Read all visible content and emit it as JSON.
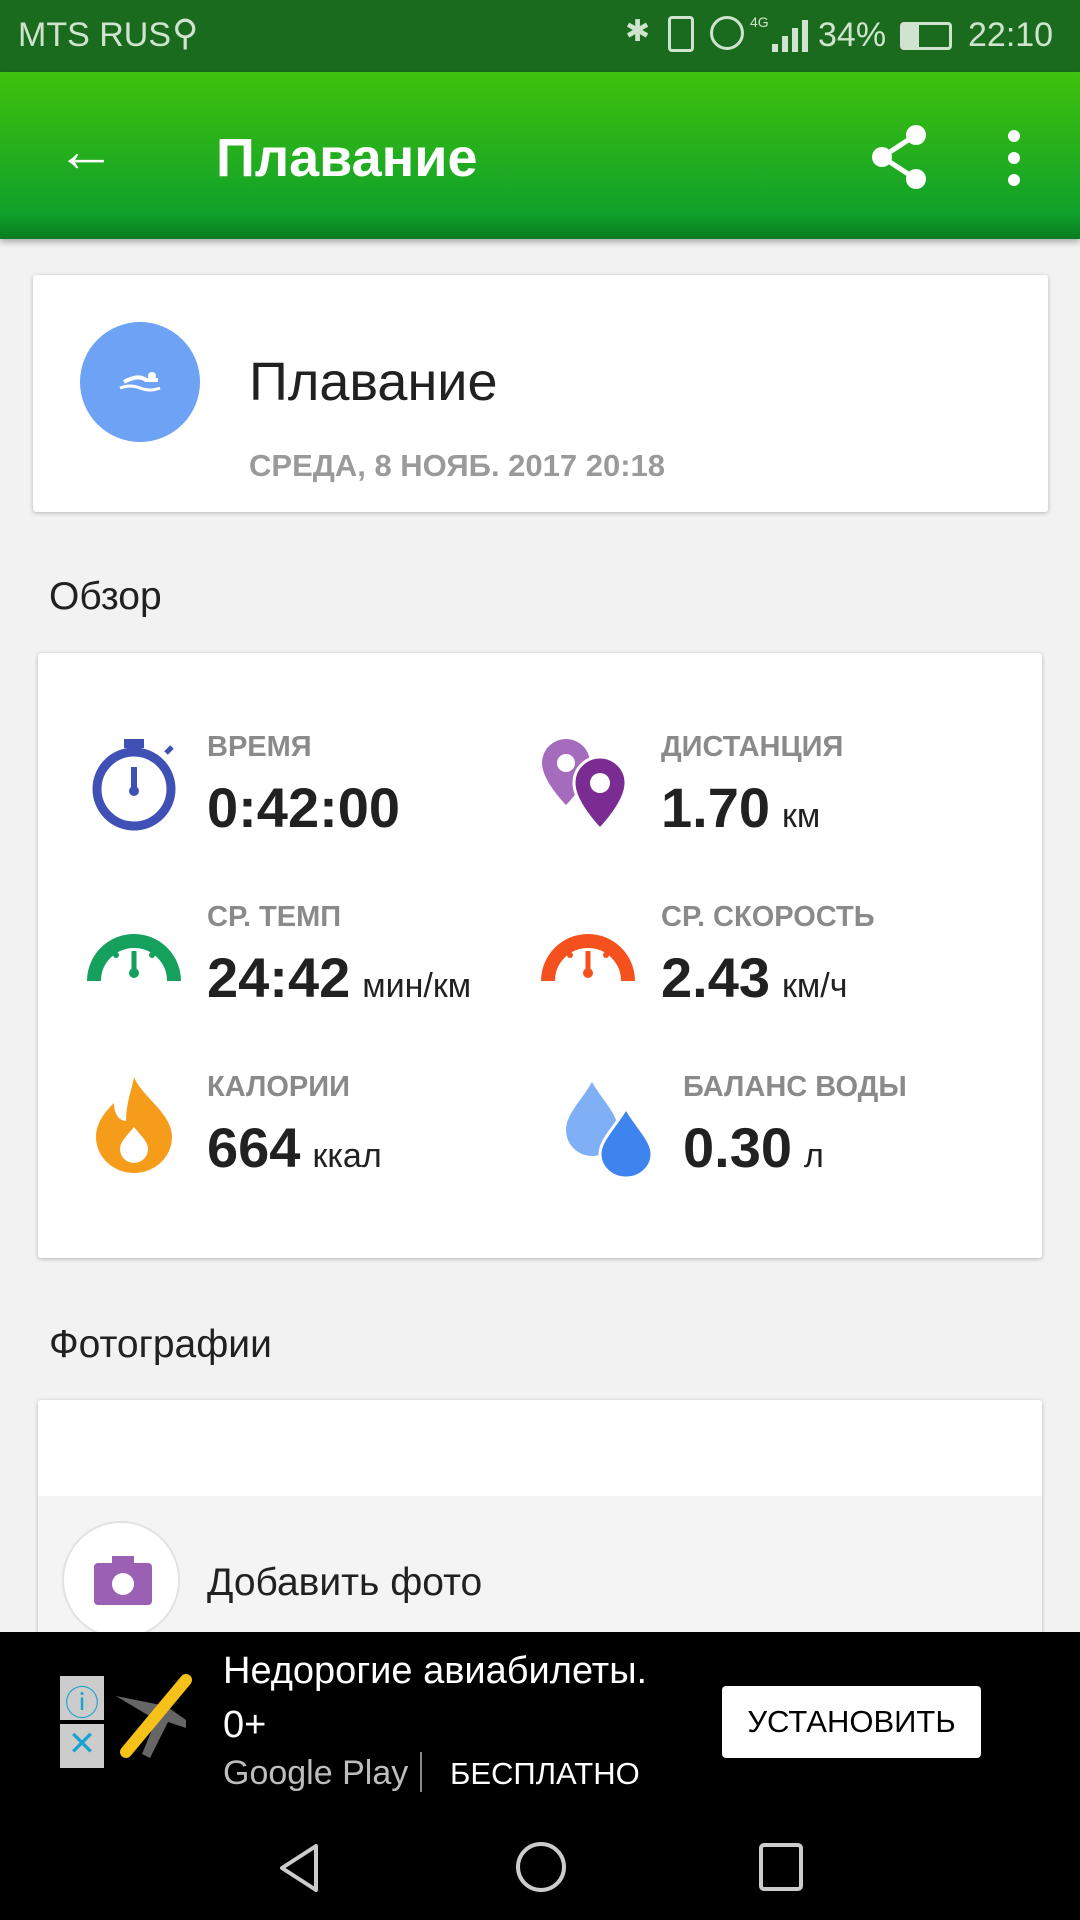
{
  "status_bar": {
    "carrier": "MTS RUS",
    "battery": "34%",
    "time": "22:10",
    "network": "4G"
  },
  "app_bar": {
    "title": "Плавание",
    "back_icon": "arrow-left-icon",
    "share_icon": "share-icon",
    "menu_icon": "more-vert-icon"
  },
  "header_card": {
    "title": "Плавание",
    "date": "СРЕДА, 8 НОЯБ. 2017 20:18",
    "icon": "swimmer-icon",
    "icon_color": "#6ea2f5"
  },
  "overview": {
    "title": "Обзор",
    "stats": [
      {
        "label": "ВРЕМЯ",
        "value": "0:42:00",
        "unit": "",
        "icon": "stopwatch-icon",
        "color": "#3f51b5"
      },
      {
        "label": "ДИСТАНЦИЯ",
        "value": "1.70",
        "unit": "км",
        "icon": "location-pins-icon",
        "color": "#8e3a9e"
      },
      {
        "label": "СР. ТЕМП",
        "value": "24:42",
        "unit": "мин/км",
        "icon": "gauge-icon",
        "color": "#16a05d"
      },
      {
        "label": "СР. СКОРОСТЬ",
        "value": "2.43",
        "unit": "км/ч",
        "icon": "speedometer-icon",
        "color": "#f4511e"
      },
      {
        "label": "КАЛОРИИ",
        "value": "664",
        "unit": "ккал",
        "icon": "flame-icon",
        "color": "#f59c1a"
      },
      {
        "label": "БАЛАНС ВОДЫ",
        "value": "0.30",
        "unit": "л",
        "icon": "water-drops-icon",
        "color": "#4a8ef0"
      }
    ]
  },
  "photos": {
    "title": "Фотографии",
    "add_label": "Добавить фото",
    "icon": "camera-icon"
  },
  "ad": {
    "title": "Недорогие авиабилеты.",
    "rating": "0+",
    "store": "Google Play",
    "price": "БЕСПЛАТНО",
    "button": "УСТАНОВИТЬ"
  }
}
